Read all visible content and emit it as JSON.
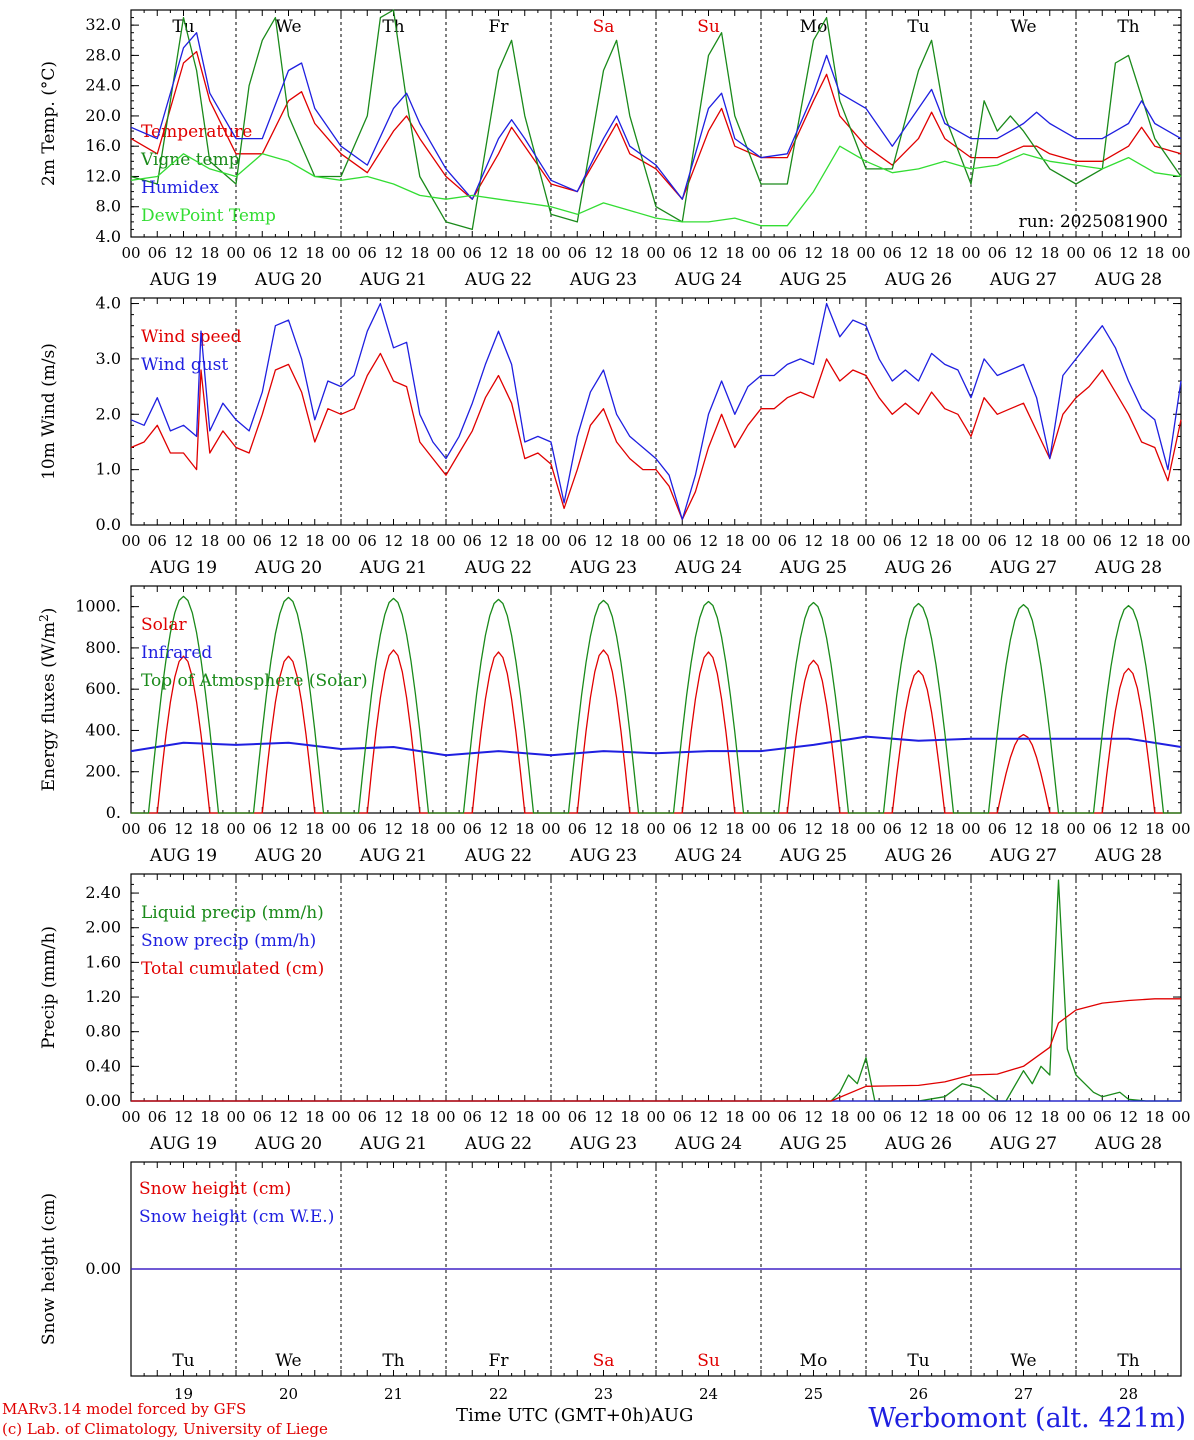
{
  "chart_data": [
    {
      "type": "line",
      "ylabel": "2m Temp. (°C)",
      "ylim": [
        4,
        34
      ],
      "yticks": [
        "4.0",
        "8.0",
        "12.0",
        "16.0",
        "20.0",
        "24.0",
        "28.0",
        "32.0"
      ],
      "run_label": "run: 2025081900",
      "series": [
        {
          "name": "Temperature",
          "color": "#e00000",
          "x": [
            0,
            6,
            12,
            15,
            18,
            24,
            30,
            36,
            39,
            42,
            48,
            54,
            60,
            63,
            66,
            72,
            78,
            84,
            87,
            90,
            96,
            102,
            108,
            111,
            114,
            120,
            126,
            132,
            135,
            138,
            144,
            150,
            156,
            159,
            162,
            168,
            174,
            180,
            183,
            186,
            192,
            198,
            204,
            207,
            210,
            216,
            222,
            228,
            231,
            234,
            240
          ],
          "values": [
            17,
            15,
            27,
            28.5,
            22,
            15,
            15,
            22,
            23.2,
            19,
            15,
            12.5,
            18,
            20,
            17,
            12,
            9,
            15,
            18.5,
            16,
            11,
            10,
            16,
            19,
            15,
            13,
            9,
            18,
            21,
            16,
            14.5,
            14.5,
            22,
            25.5,
            20,
            16,
            13.5,
            17,
            20.5,
            17,
            14.5,
            14.5,
            16,
            16,
            15,
            14,
            14,
            16,
            18.5,
            16,
            15
          ]
        },
        {
          "name": "Vigne temp",
          "color": "#1a8a1a",
          "x": [
            0,
            6,
            9,
            12,
            15,
            18,
            24,
            27,
            30,
            33,
            36,
            42,
            48,
            54,
            57,
            60,
            63,
            66,
            72,
            78,
            84,
            87,
            90,
            96,
            102,
            108,
            111,
            114,
            120,
            126,
            132,
            135,
            138,
            144,
            150,
            156,
            159,
            162,
            168,
            174,
            180,
            183,
            186,
            192,
            195,
            198,
            201,
            204,
            210,
            216,
            222,
            225,
            228,
            234,
            240
          ],
          "values": [
            12,
            11,
            22,
            33,
            26,
            14,
            11,
            24,
            30,
            33,
            20,
            12,
            12,
            20,
            33,
            34,
            22,
            12,
            6,
            5,
            26,
            30,
            20,
            7,
            6,
            26,
            30,
            20,
            8,
            6,
            28,
            31,
            20,
            11,
            11,
            30,
            33,
            22,
            13,
            13,
            26,
            30,
            20,
            11,
            22,
            18,
            20,
            18,
            13,
            11,
            13,
            27,
            28,
            17,
            12
          ]
        },
        {
          "name": "Humidex",
          "color": "#1f1fe0",
          "x": [
            0,
            6,
            12,
            15,
            18,
            24,
            30,
            36,
            39,
            42,
            48,
            54,
            60,
            63,
            66,
            72,
            78,
            84,
            87,
            90,
            96,
            102,
            108,
            111,
            114,
            120,
            126,
            132,
            135,
            138,
            144,
            150,
            156,
            159,
            162,
            168,
            174,
            180,
            183,
            186,
            192,
            198,
            204,
            207,
            210,
            216,
            222,
            228,
            231,
            234,
            240
          ],
          "values": [
            18.5,
            17,
            29,
            31,
            23,
            17,
            17,
            26,
            27,
            21,
            16,
            13.5,
            21,
            23,
            19,
            13,
            9,
            17,
            19.5,
            17,
            11.5,
            10,
            17,
            20,
            16,
            13.5,
            9,
            21,
            23,
            17,
            14.5,
            15,
            23,
            28,
            23,
            21,
            16,
            21,
            23.5,
            19,
            17,
            17,
            19,
            20.5,
            19,
            17,
            17,
            19,
            22,
            19,
            17
          ]
        },
        {
          "name": "DewPoint Temp",
          "color": "#33dd33",
          "x": [
            0,
            6,
            12,
            18,
            24,
            30,
            36,
            42,
            48,
            54,
            60,
            66,
            72,
            78,
            84,
            90,
            96,
            102,
            108,
            114,
            120,
            126,
            132,
            138,
            144,
            150,
            156,
            162,
            168,
            174,
            180,
            186,
            192,
            198,
            204,
            210,
            216,
            222,
            228,
            234,
            240
          ],
          "values": [
            11.5,
            12,
            15,
            13,
            12,
            15,
            14,
            12,
            11.5,
            12,
            11,
            9.5,
            9,
            9.5,
            9,
            8.5,
            8,
            7,
            8.5,
            7.5,
            6.5,
            6,
            6,
            6.5,
            5.5,
            5.5,
            10,
            16,
            14,
            12.5,
            13,
            14,
            13,
            13.5,
            15,
            14,
            13.5,
            13,
            14.5,
            12.5,
            12
          ]
        }
      ]
    },
    {
      "type": "line",
      "ylabel": "10m Wind (m/s)",
      "ylim": [
        0,
        4
      ],
      "yticks": [
        "0.0",
        "1.0",
        "2.0",
        "3.0",
        "4.0"
      ],
      "series": [
        {
          "name": "Wind speed",
          "color": "#e00000",
          "x": [
            0,
            3,
            6,
            9,
            12,
            15,
            16,
            18,
            21,
            24,
            27,
            30,
            33,
            36,
            39,
            42,
            45,
            48,
            51,
            54,
            57,
            60,
            63,
            66,
            69,
            72,
            75,
            78,
            81,
            84,
            87,
            90,
            93,
            96,
            99,
            102,
            105,
            108,
            111,
            114,
            117,
            120,
            123,
            126,
            129,
            132,
            135,
            138,
            141,
            144,
            147,
            150,
            153,
            156,
            159,
            162,
            165,
            168,
            171,
            174,
            177,
            180,
            183,
            186,
            189,
            192,
            195,
            198,
            201,
            204,
            207,
            210,
            213,
            216,
            219,
            222,
            225,
            228,
            231,
            234,
            237,
            240
          ],
          "values": [
            1.4,
            1.5,
            1.8,
            1.3,
            1.3,
            1.0,
            2.8,
            1.3,
            1.7,
            1.4,
            1.3,
            2.0,
            2.8,
            2.9,
            2.4,
            1.5,
            2.1,
            2.0,
            2.1,
            2.7,
            3.1,
            2.6,
            2.5,
            1.5,
            1.2,
            0.9,
            1.3,
            1.7,
            2.3,
            2.7,
            2.2,
            1.2,
            1.3,
            1.1,
            0.3,
            1.0,
            1.8,
            2.1,
            1.5,
            1.2,
            1.0,
            1.0,
            0.7,
            0.1,
            0.6,
            1.4,
            2.0,
            1.4,
            1.8,
            2.1,
            2.1,
            2.3,
            2.4,
            2.3,
            3.0,
            2.6,
            2.8,
            2.7,
            2.3,
            2.0,
            2.2,
            2.0,
            2.4,
            2.1,
            2.0,
            1.6,
            2.3,
            2.0,
            2.1,
            2.2,
            1.7,
            1.2,
            2.0,
            2.3,
            2.5,
            2.8,
            2.4,
            2.0,
            1.5,
            1.4,
            0.8,
            1.9
          ]
        },
        {
          "name": "Wind gust",
          "color": "#1f1fe0",
          "x": [
            0,
            3,
            6,
            9,
            12,
            15,
            16,
            18,
            21,
            24,
            27,
            30,
            33,
            36,
            39,
            42,
            45,
            48,
            51,
            54,
            57,
            60,
            63,
            66,
            69,
            72,
            75,
            78,
            81,
            84,
            87,
            90,
            93,
            96,
            99,
            102,
            105,
            108,
            111,
            114,
            117,
            120,
            123,
            126,
            129,
            132,
            135,
            138,
            141,
            144,
            147,
            150,
            153,
            156,
            159,
            162,
            165,
            168,
            171,
            174,
            177,
            180,
            183,
            186,
            189,
            192,
            195,
            198,
            201,
            204,
            207,
            210,
            213,
            216,
            219,
            222,
            225,
            228,
            231,
            234,
            237,
            240
          ],
          "values": [
            1.9,
            1.8,
            2.3,
            1.7,
            1.8,
            1.6,
            3.5,
            1.7,
            2.2,
            1.9,
            1.7,
            2.4,
            3.6,
            3.7,
            3.0,
            1.9,
            2.6,
            2.5,
            2.7,
            3.5,
            4.0,
            3.2,
            3.3,
            2.0,
            1.5,
            1.2,
            1.6,
            2.2,
            2.9,
            3.5,
            2.9,
            1.5,
            1.6,
            1.5,
            0.4,
            1.6,
            2.4,
            2.8,
            2.0,
            1.6,
            1.4,
            1.2,
            0.9,
            0.1,
            0.9,
            2.0,
            2.6,
            2.0,
            2.5,
            2.7,
            2.7,
            2.9,
            3.0,
            2.9,
            4.0,
            3.4,
            3.7,
            3.6,
            3.0,
            2.6,
            2.8,
            2.6,
            3.1,
            2.9,
            2.8,
            2.3,
            3.0,
            2.7,
            2.8,
            2.9,
            2.3,
            1.2,
            2.7,
            3.0,
            3.3,
            3.6,
            3.2,
            2.6,
            2.1,
            1.9,
            1.0,
            2.6
          ]
        }
      ]
    },
    {
      "type": "line",
      "ylabel": "Energy fluxes (W/m2)",
      "ylim": [
        0,
        1100
      ],
      "yticks": [
        "0.",
        "200.",
        "400.",
        "600.",
        "800.",
        "1000."
      ],
      "series": [
        {
          "name": "Solar",
          "color": "#e00000",
          "peaks": [
            760,
            760,
            790,
            780,
            790,
            780,
            740,
            690,
            380,
            700
          ]
        },
        {
          "name": "Infrared",
          "color": "#1f1fe0",
          "x": [
            0,
            12,
            24,
            36,
            48,
            60,
            72,
            84,
            96,
            108,
            120,
            132,
            144,
            156,
            168,
            180,
            192,
            204,
            216,
            228,
            240
          ],
          "values": [
            300,
            340,
            330,
            340,
            310,
            320,
            280,
            300,
            280,
            300,
            290,
            300,
            300,
            330,
            370,
            350,
            360,
            360,
            360,
            360,
            320
          ]
        },
        {
          "name": "Top of Atmosphere (Solar)",
          "color": "#1a8a1a",
          "peaks": [
            1050,
            1045,
            1040,
            1035,
            1030,
            1025,
            1020,
            1015,
            1010,
            1005
          ]
        }
      ]
    },
    {
      "type": "line",
      "ylabel": "Precip (mm/h)",
      "ylim": [
        0,
        2.6
      ],
      "yticks": [
        "0.00",
        "0.40",
        "0.80",
        "1.20",
        "1.60",
        "2.00",
        "2.40"
      ],
      "series": [
        {
          "name": "Liquid precip (mm/h)",
          "color": "#1a8a1a",
          "x": [
            0,
            160,
            162,
            164,
            166,
            168,
            170,
            180,
            186,
            190,
            194,
            198,
            200,
            204,
            206,
            208,
            210,
            212,
            214,
            216,
            218,
            220,
            222,
            226,
            228,
            232,
            240
          ],
          "values": [
            0,
            0,
            0.1,
            0.3,
            0.2,
            0.5,
            0,
            0,
            0.05,
            0.2,
            0.15,
            0,
            0,
            0.35,
            0.2,
            0.4,
            0.3,
            2.55,
            0.6,
            0.3,
            0.2,
            0.1,
            0.05,
            0.1,
            0.02,
            0,
            0
          ]
        },
        {
          "name": "Snow precip (mm/h)",
          "color": "#1f1fe0",
          "x": [
            0,
            240
          ],
          "values": [
            0,
            0
          ]
        },
        {
          "name": "Total cumulated (cm)",
          "color": "#e00000",
          "x": [
            0,
            160,
            168,
            180,
            186,
            192,
            198,
            204,
            210,
            212,
            216,
            222,
            228,
            234,
            240
          ],
          "values": [
            0,
            0,
            0.17,
            0.18,
            0.22,
            0.3,
            0.31,
            0.4,
            0.62,
            0.9,
            1.05,
            1.13,
            1.16,
            1.18,
            1.18
          ]
        }
      ]
    },
    {
      "type": "line",
      "ylabel": "Snow height (cm)",
      "ylim": [
        -1,
        1
      ],
      "yticks": [
        "0.00"
      ],
      "series": [
        {
          "name": "Snow height (cm)",
          "color": "#e00000",
          "x": [
            0,
            240
          ],
          "values": [
            0,
            0
          ]
        },
        {
          "name": "Snow height (cm W.E.)",
          "color": "#1f1fe0",
          "x": [
            0,
            240
          ],
          "values": [
            0,
            0
          ]
        }
      ]
    }
  ],
  "x_axis": {
    "hour_ticks": [
      "00",
      "06",
      "12",
      "18"
    ],
    "end_tick": "00",
    "dates": [
      "AUG 19",
      "AUG 20",
      "AUG 21",
      "AUG 22",
      "AUG 23",
      "AUG 24",
      "AUG 25",
      "AUG 26",
      "AUG 27",
      "AUG 28"
    ],
    "weekdays": [
      "Tu",
      "We",
      "Th",
      "Fr",
      "Sa",
      "Su",
      "Mo",
      "Tu",
      "We",
      "Th"
    ],
    "weekend_color": "#e00000",
    "day_numbers": [
      "19",
      "20",
      "21",
      "22",
      "23",
      "24",
      "25",
      "26",
      "27",
      "28"
    ],
    "month": "AUG",
    "title": "Time UTC (GMT+0h)"
  },
  "footer": {
    "model": "MARv3.14 model forced by GFS",
    "lab": "(c) Lab. of Climatology, University of Liege",
    "station": "Werbomont (alt. 421m)"
  }
}
